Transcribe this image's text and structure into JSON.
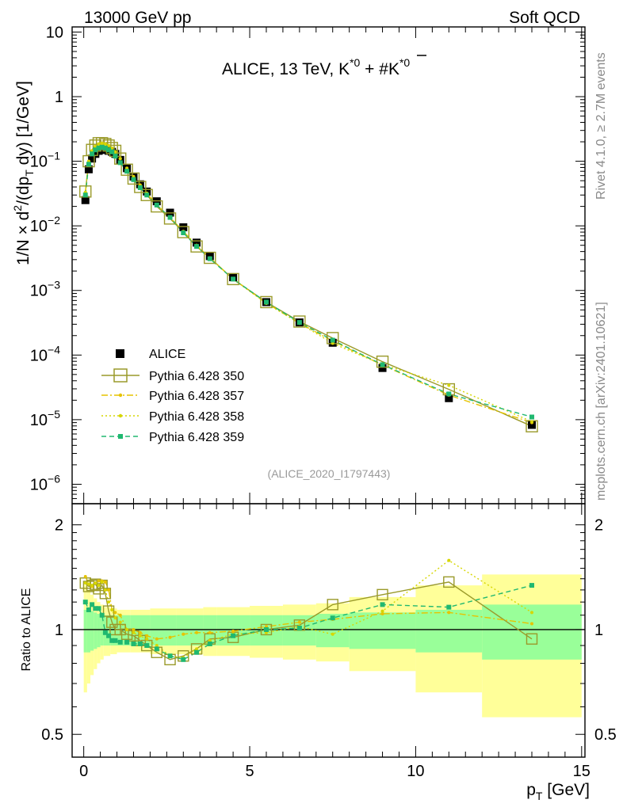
{
  "header": {
    "left": "13000 GeV pp",
    "right": "Soft QCD"
  },
  "side_labels": {
    "rivet": "Rivet 4.1.0, ≥ 2.7M events",
    "mcplots": "mcplots.cern.ch [arXiv:2401.10621]"
  },
  "chart_data": [
    {
      "type": "scatter",
      "panel": "main",
      "title_parts": {
        "main": "ALICE, 13 TeV, K",
        "sup1": "*0",
        "plus": " + #K",
        "sup2": "*0"
      },
      "ylabel_parts": {
        "a": "1/N × d",
        "sup": "2",
        "b": "/(dp",
        "sub": "T",
        "c": " dy) [1/GeV]"
      },
      "yscale": "log",
      "ylim": [
        5e-07,
        12
      ],
      "xlim": [
        -0.35,
        15.1
      ],
      "yticks": [
        {
          "v": 10,
          "base": "10",
          "exp": ""
        },
        {
          "v": 1,
          "base": "1",
          "exp": ""
        },
        {
          "v": 0.1,
          "base": "10",
          "exp": "−1"
        },
        {
          "v": 0.01,
          "base": "10",
          "exp": "−2"
        },
        {
          "v": 0.001,
          "base": "10",
          "exp": "−3"
        },
        {
          "v": 0.0001,
          "base": "10",
          "exp": "−4"
        },
        {
          "v": 1e-05,
          "base": "10",
          "exp": "−5"
        },
        {
          "v": 1e-06,
          "base": "10",
          "exp": "−6"
        }
      ],
      "analysis_id": "(ALICE_2020_I1797443)",
      "x": [
        0.05,
        0.15,
        0.25,
        0.35,
        0.45,
        0.55,
        0.65,
        0.75,
        0.85,
        0.95,
        1.1,
        1.3,
        1.5,
        1.7,
        1.9,
        2.2,
        2.6,
        3.0,
        3.4,
        3.8,
        4.5,
        5.5,
        6.5,
        7.5,
        9.0,
        11.0,
        13.5
      ],
      "series": [
        {
          "name": "ALICE",
          "style": "data",
          "color": "#000000",
          "values": [
            0.025,
            0.075,
            0.11,
            0.13,
            0.145,
            0.15,
            0.15,
            0.145,
            0.14,
            0.13,
            0.105,
            0.078,
            0.058,
            0.044,
            0.034,
            0.024,
            0.016,
            0.0095,
            0.0055,
            0.0034,
            0.0016,
            0.00066,
            0.00032,
            0.000155,
            6.3e-05,
            2.15e-05,
            8.3e-06
          ]
        },
        {
          "name": "Pythia 6.428 350",
          "style": "open-square",
          "color": "#9a9a2a",
          "values": [
            0.034,
            0.1,
            0.15,
            0.175,
            0.19,
            0.19,
            0.185,
            0.175,
            0.16,
            0.145,
            0.11,
            0.074,
            0.054,
            0.04,
            0.03,
            0.02,
            0.013,
            0.008,
            0.0048,
            0.0032,
            0.0015,
            0.00066,
            0.00033,
            0.000183,
            7.9e-05,
            2.95e-05,
            7.9e-06
          ]
        },
        {
          "name": "Pythia 6.428 357",
          "style": "dashdot",
          "color": "#e6c300",
          "values": [
            0.033,
            0.1,
            0.145,
            0.17,
            0.185,
            0.19,
            0.185,
            0.175,
            0.16,
            0.14,
            0.11,
            0.078,
            0.058,
            0.043,
            0.032,
            0.021,
            0.0135,
            0.0082,
            0.005,
            0.0032,
            0.0015,
            0.00064,
            0.00031,
            0.000165,
            7e-05,
            2.4e-05,
            9e-06
          ]
        },
        {
          "name": "Pythia 6.428 358",
          "style": "dotted",
          "color": "#d6d600",
          "values": [
            0.033,
            0.1,
            0.145,
            0.17,
            0.185,
            0.19,
            0.185,
            0.175,
            0.16,
            0.14,
            0.11,
            0.078,
            0.057,
            0.042,
            0.032,
            0.021,
            0.0135,
            0.0082,
            0.005,
            0.0032,
            0.0015,
            0.00063,
            0.00031,
            0.000152,
            7.1e-05,
            3.4e-05,
            9.3e-06
          ]
        },
        {
          "name": "Pythia 6.428 359",
          "style": "dashed",
          "color": "#20b870",
          "values": [
            0.03,
            0.09,
            0.13,
            0.15,
            0.16,
            0.165,
            0.16,
            0.15,
            0.14,
            0.12,
            0.095,
            0.07,
            0.052,
            0.039,
            0.03,
            0.021,
            0.0135,
            0.0078,
            0.0048,
            0.0031,
            0.0015,
            0.00066,
            0.00032,
            0.00017,
            7.1e-05,
            2.5e-05,
            1.1e-05
          ]
        }
      ]
    },
    {
      "type": "line",
      "panel": "ratio",
      "ylabel": "Ratio to ALICE",
      "yscale": "log",
      "ylim": [
        0.43,
        2.3
      ],
      "yticks": [
        2,
        1,
        0.5
      ],
      "ytick_labels": [
        "2",
        "1",
        "0.5"
      ],
      "xlabel_main": "p",
      "xlabel_sub": "T",
      "xlabel_unit": " [GeV]",
      "xticks": [
        0,
        5,
        10,
        15
      ],
      "xtick_labels": [
        "0",
        "5",
        "10",
        "15"
      ],
      "uncertainty_bins": [
        {
          "x0": 0.0,
          "x1": 0.1,
          "inner": 0.14,
          "outer": 0.34
        },
        {
          "x0": 0.1,
          "x1": 0.2,
          "inner": 0.14,
          "outer": 0.3
        },
        {
          "x0": 0.2,
          "x1": 0.3,
          "inner": 0.13,
          "outer": 0.26
        },
        {
          "x0": 0.3,
          "x1": 0.4,
          "inner": 0.12,
          "outer": 0.23
        },
        {
          "x0": 0.4,
          "x1": 0.5,
          "inner": 0.11,
          "outer": 0.2
        },
        {
          "x0": 0.5,
          "x1": 0.6,
          "inner": 0.1,
          "outer": 0.18
        },
        {
          "x0": 0.6,
          "x1": 0.8,
          "inner": 0.1,
          "outer": 0.16
        },
        {
          "x0": 0.8,
          "x1": 1.0,
          "inner": 0.1,
          "outer": 0.15
        },
        {
          "x0": 1.0,
          "x1": 1.4,
          "inner": 0.1,
          "outer": 0.14
        },
        {
          "x0": 1.4,
          "x1": 2.0,
          "inner": 0.1,
          "outer": 0.14
        },
        {
          "x0": 2.0,
          "x1": 2.8,
          "inner": 0.1,
          "outer": 0.15
        },
        {
          "x0": 2.8,
          "x1": 3.6,
          "inner": 0.1,
          "outer": 0.15
        },
        {
          "x0": 3.6,
          "x1": 4.0,
          "inner": 0.1,
          "outer": 0.16
        },
        {
          "x0": 4.0,
          "x1": 5.0,
          "inner": 0.1,
          "outer": 0.16
        },
        {
          "x0": 5.0,
          "x1": 6.0,
          "inner": 0.1,
          "outer": 0.17
        },
        {
          "x0": 6.0,
          "x1": 7.0,
          "inner": 0.1,
          "outer": 0.18
        },
        {
          "x0": 7.0,
          "x1": 8.0,
          "inner": 0.11,
          "outer": 0.19
        },
        {
          "x0": 8.0,
          "x1": 10.0,
          "inner": 0.12,
          "outer": 0.24
        },
        {
          "x0": 10.0,
          "x1": 12.0,
          "inner": 0.14,
          "outer": 0.34
        },
        {
          "x0": 12.0,
          "x1": 15.0,
          "inner": 0.18,
          "outer": 0.44
        }
      ],
      "x": [
        0.05,
        0.15,
        0.25,
        0.35,
        0.45,
        0.55,
        0.65,
        0.75,
        0.85,
        0.95,
        1.1,
        1.3,
        1.5,
        1.7,
        1.9,
        2.2,
        2.6,
        3.0,
        3.4,
        3.8,
        4.5,
        5.5,
        6.5,
        7.5,
        9.0,
        11.0,
        13.5
      ],
      "series": [
        {
          "name": "Pythia 6.428 350",
          "style": "open-square",
          "color": "#9a9a2a",
          "values": [
            1.36,
            1.33,
            1.34,
            1.35,
            1.31,
            1.34,
            1.27,
            1.13,
            1.05,
            1.0,
            1.0,
            0.97,
            0.96,
            0.93,
            0.9,
            0.86,
            0.82,
            0.84,
            0.88,
            0.94,
            0.95,
            1.0,
            1.03,
            1.18,
            1.26,
            1.37,
            0.94
          ]
        },
        {
          "name": "Pythia 6.428 357",
          "style": "dashdot",
          "color": "#e6c300",
          "values": [
            1.42,
            1.35,
            1.33,
            1.36,
            1.38,
            1.38,
            1.37,
            1.3,
            1.14,
            1.12,
            1.1,
            1.0,
            1.0,
            0.98,
            0.96,
            0.94,
            0.95,
            0.97,
            0.98,
            0.98,
            0.99,
            1.02,
            1.05,
            1.07,
            1.11,
            1.12,
            1.04
          ]
        },
        {
          "name": "Pythia 6.428 358",
          "style": "dotted",
          "color": "#d6d600",
          "values": [
            1.36,
            1.35,
            1.34,
            1.36,
            1.34,
            1.37,
            1.3,
            1.2,
            1.14,
            1.08,
            1.05,
            1.0,
            0.98,
            0.96,
            0.94,
            0.9,
            0.84,
            0.83,
            0.88,
            0.93,
            0.97,
            0.98,
            1.02,
            0.97,
            1.13,
            1.58,
            1.12
          ]
        },
        {
          "name": "Pythia 6.428 359",
          "style": "dashed",
          "color": "#20b870",
          "values": [
            1.2,
            1.14,
            1.18,
            1.15,
            1.15,
            1.1,
            0.98,
            0.96,
            0.93,
            0.93,
            0.92,
            0.92,
            0.91,
            0.91,
            0.9,
            0.88,
            0.84,
            0.82,
            0.86,
            0.91,
            0.96,
            1.0,
            1.01,
            1.08,
            1.18,
            1.16,
            1.34
          ]
        }
      ]
    }
  ]
}
